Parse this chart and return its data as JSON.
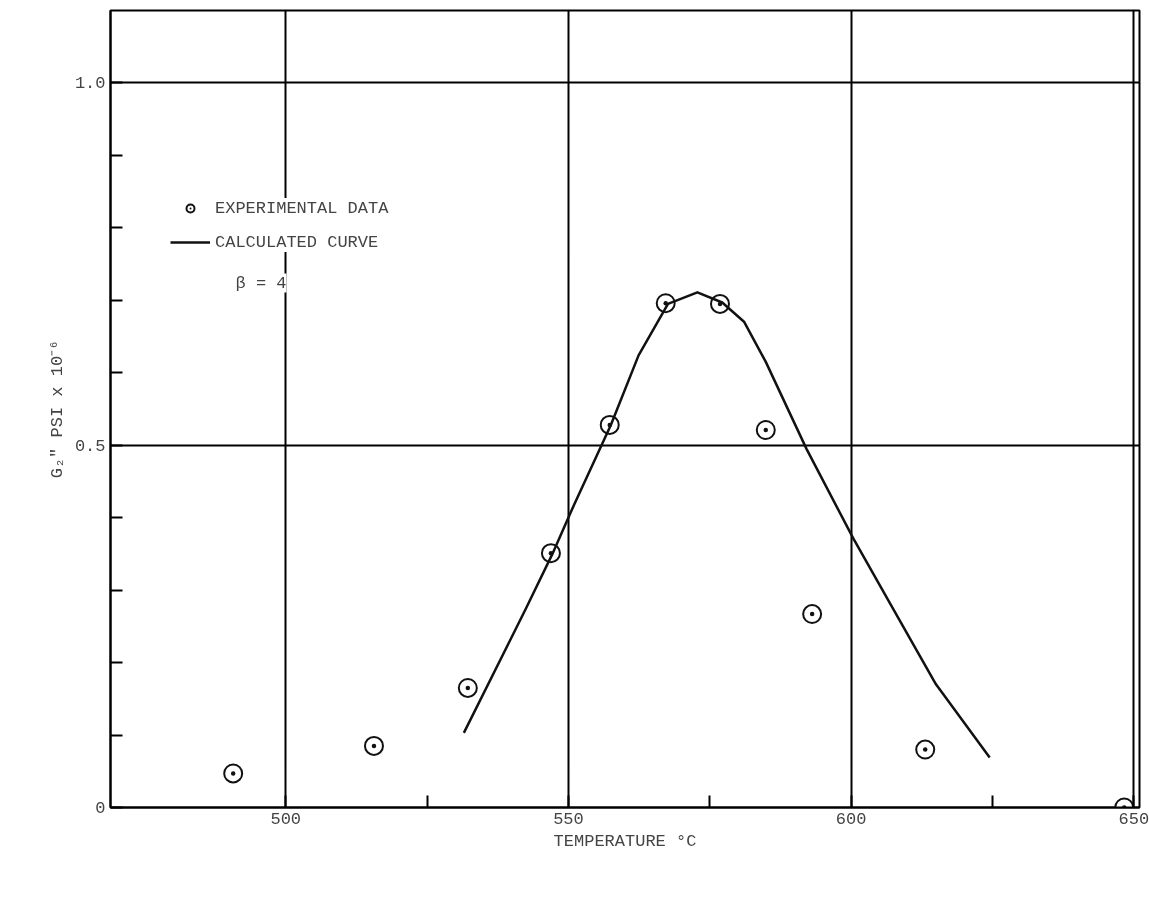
{
  "chart_data": {
    "type": "scatter",
    "xlabel": "TEMPERATURE °C",
    "ylabel": "G₂\" PSI x 10⁻⁶",
    "xlim": [
      469,
      651
    ],
    "ylim": [
      0,
      1.1
    ],
    "xticks": [
      500,
      {
        "value": 525,
        "label": null
      },
      550,
      {
        "value": 575,
        "label": null
      },
      600,
      {
        "value": 625,
        "label": null
      },
      650
    ],
    "yticks": [
      0,
      {
        "value": 0.1,
        "label": null
      },
      {
        "value": 0.2,
        "label": null
      },
      {
        "value": 0.3,
        "label": null
      },
      {
        "value": 0.4,
        "label": null
      },
      "0.5",
      {
        "value": 0.6,
        "label": null
      },
      {
        "value": 0.7,
        "label": null
      },
      {
        "value": 0.8,
        "label": null
      },
      {
        "value": 0.9,
        "label": null
      },
      {
        "value": 1.0,
        "label": "1.0"
      }
    ],
    "grid": true,
    "legend": "top left",
    "annotations": [
      "β = 4"
    ],
    "series": [
      {
        "name": "EXPERIMENTAL DATA",
        "color": "#111111",
        "marker": "circle",
        "x": [
          490.7,
          515.6,
          532.2,
          546.9,
          557.3,
          567.2,
          576.8,
          584.9,
          593.1,
          613.1,
          648.3
        ],
        "values": [
          0.047,
          0.085,
          0.165,
          0.351,
          0.528,
          0.696,
          0.695,
          0.521,
          0.267,
          0.08,
          0.0
        ]
      },
      {
        "name": "CALCULATED CURVE",
        "type": "line",
        "color": "#111111",
        "line_style": "solid",
        "x": [
          531.5,
          542.5,
          547.1,
          551,
          557.5,
          562.4,
          567.6,
          572.8,
          577.2,
          581.1,
          584.9,
          592.1,
          600.4,
          607,
          615,
          624.5
        ],
        "values": [
          0.103,
          0.275,
          0.349,
          0.418,
          0.528,
          0.624,
          0.695,
          0.711,
          0.697,
          0.67,
          0.615,
          0.495,
          0.371,
          0.28,
          0.17,
          0.069
        ]
      }
    ]
  }
}
